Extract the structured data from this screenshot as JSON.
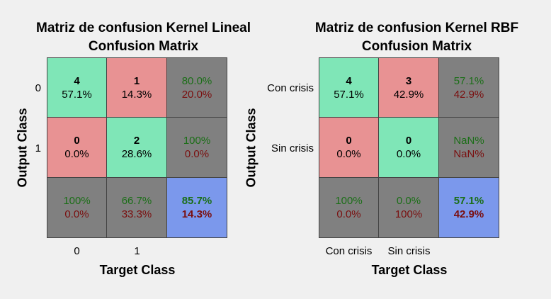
{
  "chart_data": [
    {
      "type": "table",
      "title": "Matriz de confusion Kernel Lineal",
      "subtitle": "Confusion Matrix",
      "xlabel": "Target Class",
      "ylabel": "Output Class",
      "output_labels": [
        "0",
        "1"
      ],
      "target_labels": [
        "0",
        "1"
      ],
      "counts": [
        [
          4,
          1
        ],
        [
          0,
          2
        ]
      ],
      "cell_percent": [
        [
          "57.1%",
          "14.3%"
        ],
        [
          "0.0%",
          "28.6%"
        ]
      ],
      "row_summary": [
        {
          "correct": "80.0%",
          "wrong": "20.0%"
        },
        {
          "correct": "100%",
          "wrong": "0.0%"
        }
      ],
      "col_summary": [
        {
          "correct": "100%",
          "wrong": "0.0%"
        },
        {
          "correct": "66.7%",
          "wrong": "33.3%"
        }
      ],
      "overall": {
        "correct": "85.7%",
        "wrong": "14.3%"
      }
    },
    {
      "type": "table",
      "title": "Matriz de confusion Kernel RBF",
      "subtitle": "Confusion Matrix",
      "xlabel": "Target Class",
      "ylabel": "Output Class",
      "output_labels": [
        "Con crisis",
        "Sin crisis"
      ],
      "target_labels": [
        "Con crisis",
        "Sin crisis"
      ],
      "counts": [
        [
          4,
          3
        ],
        [
          0,
          0
        ]
      ],
      "cell_percent": [
        [
          "57.1%",
          "42.9%"
        ],
        [
          "0.0%",
          "0.0%"
        ]
      ],
      "row_summary": [
        {
          "correct": "57.1%",
          "wrong": "42.9%"
        },
        {
          "correct": "NaN%",
          "wrong": "NaN%"
        }
      ],
      "col_summary": [
        {
          "correct": "100%",
          "wrong": "0.0%"
        },
        {
          "correct": "0.0%",
          "wrong": "100%"
        }
      ],
      "overall": {
        "correct": "57.1%",
        "wrong": "42.9%"
      }
    }
  ],
  "colors": {
    "correct_cell": "#7fe6b7",
    "wrong_cell": "#e89293",
    "summary_cell": "#808080",
    "overall_cell": "#7b98ec",
    "correct_text": "#1b6e17",
    "wrong_text": "#7a0f0f"
  }
}
